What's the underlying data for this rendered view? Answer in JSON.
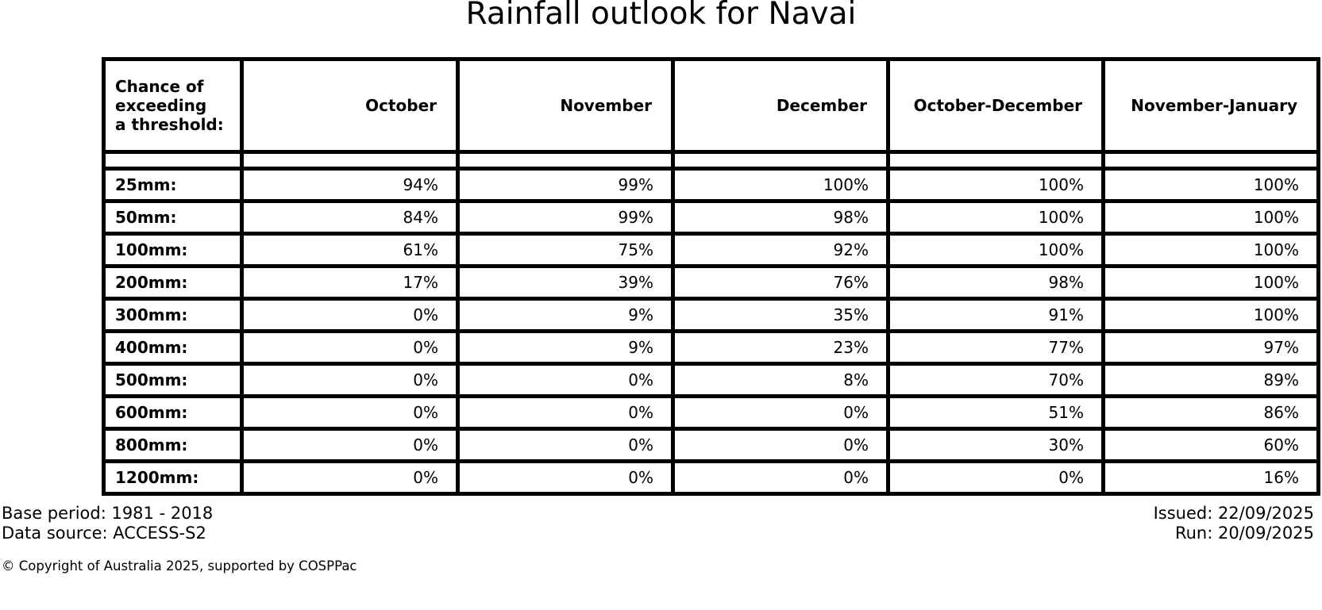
{
  "title": "Rainfall outlook for Navai",
  "colors": {
    "background": "#ffffff",
    "text": "#000000",
    "table_border": "#000000"
  },
  "table": {
    "corner_header_multiline": "Chance of\nexceeding\na threshold:"
  },
  "chart_data": {
    "type": "table",
    "title": "Rainfall outlook for Navai",
    "columns": [
      "Chance of exceeding a threshold:",
      "October",
      "November",
      "December",
      "October-December",
      "November-January"
    ],
    "rows": [
      [
        "25mm:",
        "94%",
        "99%",
        "100%",
        "100%",
        "100%"
      ],
      [
        "50mm:",
        "84%",
        "99%",
        "98%",
        "100%",
        "100%"
      ],
      [
        "100mm:",
        "61%",
        "75%",
        "92%",
        "100%",
        "100%"
      ],
      [
        "200mm:",
        "17%",
        "39%",
        "76%",
        "98%",
        "100%"
      ],
      [
        "300mm:",
        "0%",
        "9%",
        "35%",
        "91%",
        "100%"
      ],
      [
        "400mm:",
        "0%",
        "9%",
        "23%",
        "77%",
        "97%"
      ],
      [
        "500mm:",
        "0%",
        "0%",
        "8%",
        "70%",
        "89%"
      ],
      [
        "600mm:",
        "0%",
        "0%",
        "0%",
        "51%",
        "86%"
      ],
      [
        "800mm:",
        "0%",
        "0%",
        "0%",
        "30%",
        "60%"
      ],
      [
        "1200mm:",
        "0%",
        "0%",
        "0%",
        "0%",
        "16%"
      ]
    ],
    "layout": {
      "grid": "on",
      "data_alignment": "right",
      "row_label_alignment": "left"
    }
  },
  "footer": {
    "base_period": "Base period: 1981 - 2018",
    "data_source": "Data source: ACCESS-S2",
    "issued": "Issued: 22/09/2025",
    "run": "Run: 20/09/2025",
    "copyright": "© Copyright of Australia 2025, supported by COSPPac"
  }
}
